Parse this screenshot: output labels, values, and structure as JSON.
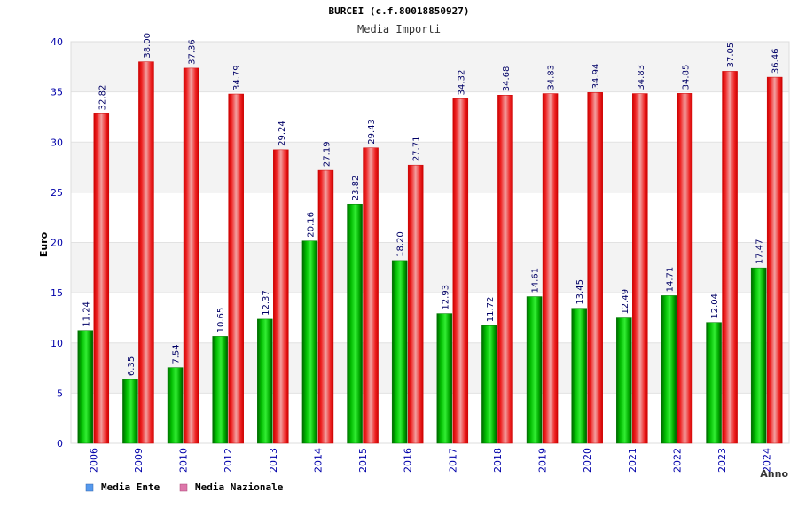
{
  "chart_data": {
    "type": "bar",
    "title": "BURCEI (c.f.80018850927)",
    "subtitle": "Media Importi",
    "xlabel": "Anno",
    "ylabel": "Euro",
    "ylim": [
      0,
      40
    ],
    "yticks": [
      "0",
      "5",
      "10",
      "15",
      "20",
      "25",
      "30",
      "35",
      "40"
    ],
    "grid": true,
    "legend_position": "bottom-left",
    "categories": [
      "2006",
      "2009",
      "2010",
      "2012",
      "2013",
      "2014",
      "2015",
      "2016",
      "2017",
      "2018",
      "2019",
      "2020",
      "2021",
      "2022",
      "2023",
      "2024"
    ],
    "series": [
      {
        "name": "Media Ente",
        "color": "#00aa00",
        "legend_color": "#5599ee",
        "values": [
          11.24,
          6.35,
          7.54,
          10.65,
          12.37,
          20.16,
          23.82,
          18.2,
          12.93,
          11.72,
          14.61,
          13.45,
          12.49,
          14.71,
          12.04,
          17.47
        ],
        "labels": [
          "11.24",
          "6.35",
          "7.54",
          "10.65",
          "12.37",
          "20.16",
          "23.82",
          "18.20",
          "12.93",
          "11.72",
          "14.61",
          "13.45",
          "12.49",
          "14.71",
          "12.04",
          "17.47"
        ]
      },
      {
        "name": "Media Nazionale",
        "color": "#ee1111",
        "legend_color": "#dd77aa",
        "values": [
          32.82,
          38.0,
          37.36,
          34.79,
          29.24,
          27.19,
          29.43,
          27.71,
          34.32,
          34.68,
          34.83,
          34.94,
          34.83,
          34.85,
          37.05,
          36.46
        ],
        "labels": [
          "32.82",
          "38.00",
          "37.36",
          "34.79",
          "29.24",
          "27.19",
          "29.43",
          "27.71",
          "34.32",
          "34.68",
          "34.83",
          "34.94",
          "34.83",
          "34.85",
          "37.05",
          "36.46"
        ]
      }
    ],
    "colors": {
      "band_light": "#f3f3f3",
      "band_white": "#ffffff",
      "axis_text": "#0000aa",
      "label_text": "#000066"
    }
  }
}
